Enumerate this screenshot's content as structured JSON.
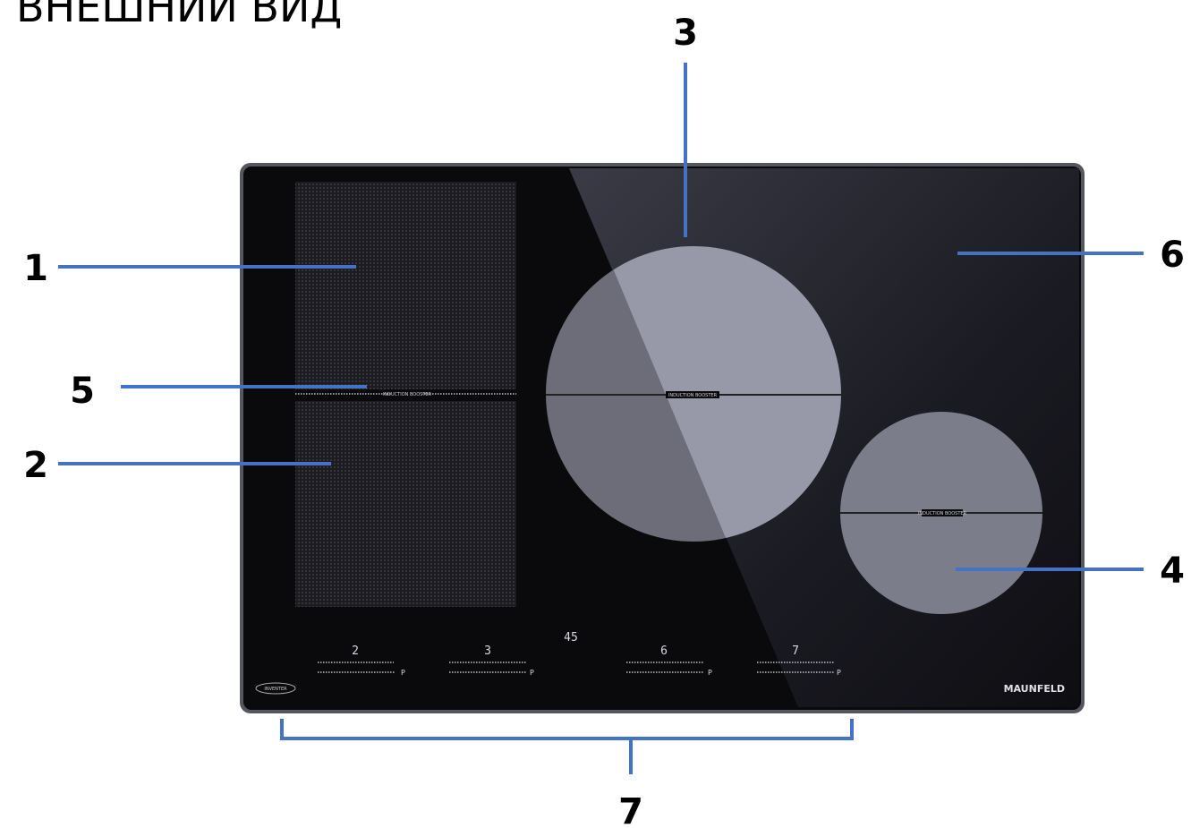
{
  "title": "ВНЕШНИЙ ВИД",
  "callouts": [
    {
      "label": "1"
    },
    {
      "label": "2"
    },
    {
      "label": "3"
    },
    {
      "label": "4"
    },
    {
      "label": "5"
    },
    {
      "label": "6"
    },
    {
      "label": "7"
    }
  ],
  "hob": {
    "brand": "MAUNFELD",
    "logo": "INVENTER",
    "zone_badges": [
      "INDUCTION BOOSTER",
      "INDUCTION BOOSTER",
      "INDUCTION BOOSTER"
    ],
    "zone_displays": [
      "2",
      "3",
      "6",
      "7"
    ],
    "timer_display": "45",
    "power_marks": [
      "P",
      "P",
      "P",
      "P"
    ]
  }
}
